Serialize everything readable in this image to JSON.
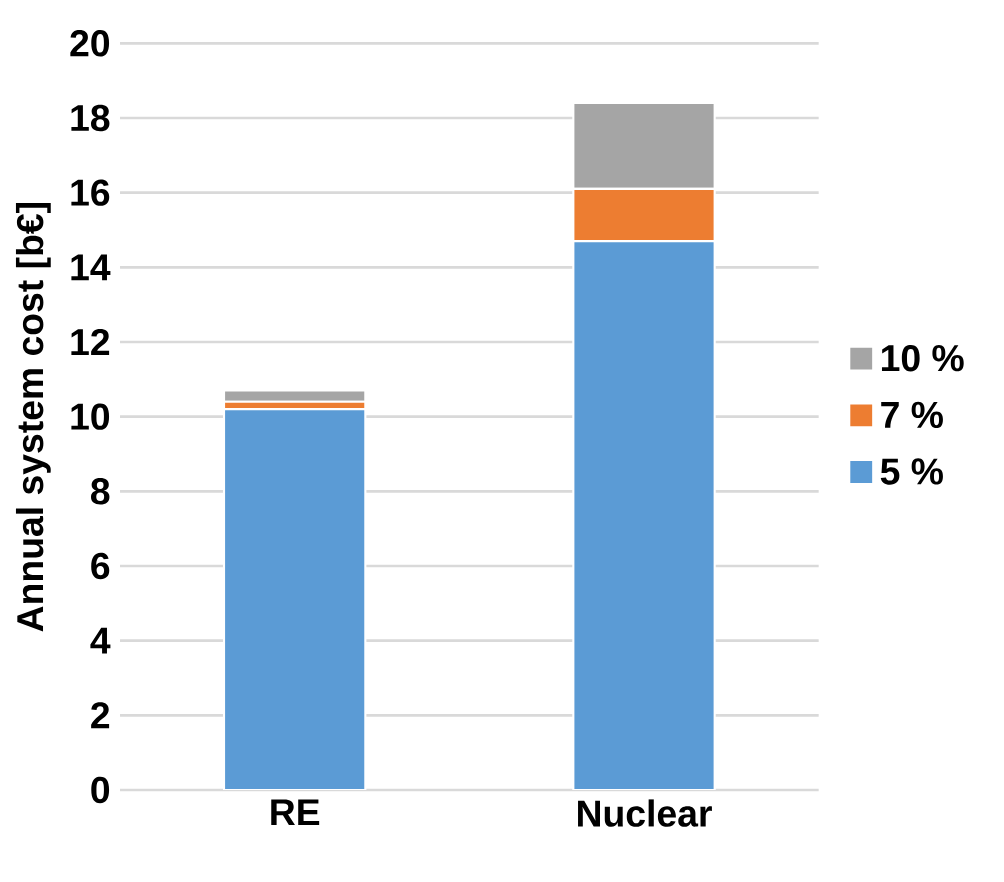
{
  "chart_data": {
    "type": "bar",
    "stacked": true,
    "ylabel": "Annual system cost [b€]",
    "categories": [
      "RE",
      "Nuclear"
    ],
    "series": [
      {
        "name": "5 %",
        "color": "#5b9bd5",
        "values": [
          10.2,
          14.7
        ]
      },
      {
        "name": "7 %",
        "color": "#ed7d31",
        "values": [
          0.2,
          1.4
        ]
      },
      {
        "name": "10 %",
        "color": "#a5a5a5",
        "values": [
          0.3,
          2.3
        ]
      }
    ],
    "ylim": [
      0,
      20
    ],
    "yticks": [
      0,
      2,
      4,
      6,
      8,
      10,
      12,
      14,
      16,
      18,
      20
    ],
    "grid": "y",
    "legend": "right"
  }
}
